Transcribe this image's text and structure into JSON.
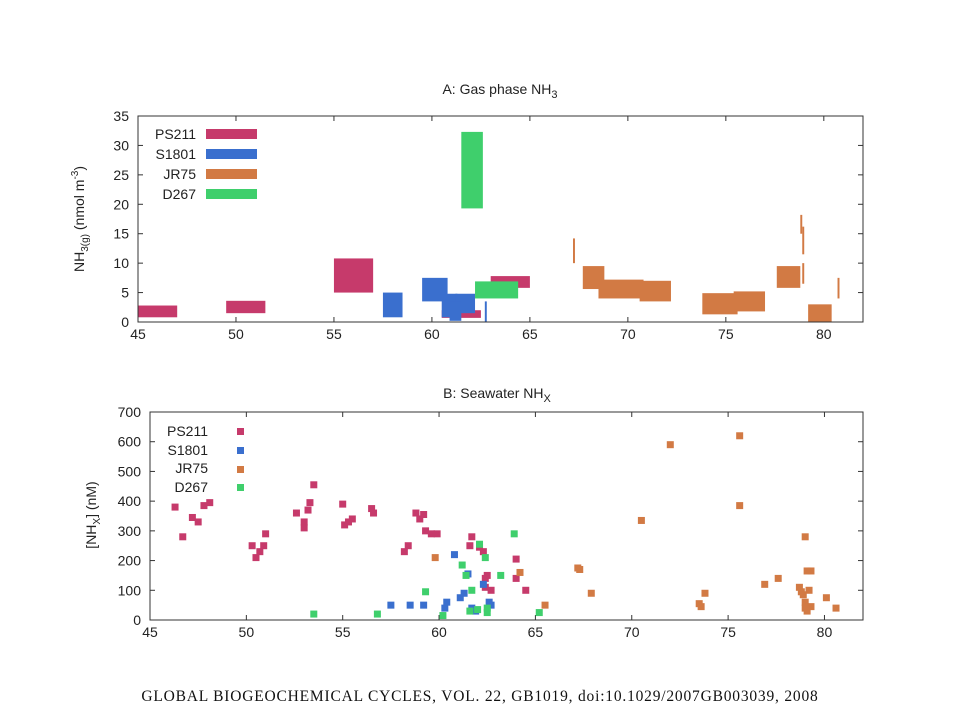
{
  "footer": "GLOBAL BIOGEOCHEMICAL CYCLES, VOL. 22, GB1019, doi:10.1029/2007GB003039, 2008",
  "colors": {
    "PS211": "#c63a6b",
    "S1801": "#3a6fce",
    "JR75": "#d27a44",
    "D267": "#3fcf6c"
  },
  "chart_data": [
    {
      "type": "bar",
      "title": {
        "main": "A: Gas phase NH",
        "sub": "3"
      },
      "ylabel": {
        "pre": "NH",
        "sub": "3(g)",
        "post": " (nmol m",
        "sup": "-3",
        "end": ")"
      },
      "xlim": [
        45,
        82
      ],
      "ylim": [
        0,
        35
      ],
      "xticks": [
        45,
        50,
        55,
        60,
        65,
        70,
        75,
        80
      ],
      "yticks": [
        0,
        5,
        10,
        15,
        20,
        25,
        30,
        35
      ],
      "legend_position": "top-left",
      "series": [
        {
          "name": "PS211",
          "bars": [
            [
              45,
              47,
              0.8,
              2.8
            ],
            [
              49.5,
              51.5,
              1.5,
              3.6
            ],
            [
              55,
              57,
              5.0,
              10.8
            ],
            [
              60.5,
              62.5,
              0.7,
              2.0
            ],
            [
              63,
              65,
              5.8,
              7.8
            ]
          ]
        },
        {
          "name": "S1801",
          "bars": [
            [
              57.5,
              58.5,
              0.8,
              5.0
            ],
            [
              59.5,
              60.8,
              3.5,
              7.5
            ],
            [
              60.5,
              61.3,
              0.8,
              4.8
            ],
            [
              61.2,
              62.2,
              1.5,
              4.8
            ],
            [
              60.9,
              61.5,
              0.2,
              3.5
            ],
            [
              62.7,
              62.8,
              0.0,
              3.5
            ]
          ]
        },
        {
          "name": "JR75",
          "bars": [
            [
              67.7,
              68.8,
              5.6,
              9.5
            ],
            [
              68.5,
              70.8,
              4.0,
              7.2
            ],
            [
              70.6,
              72.2,
              3.5,
              7.0
            ],
            [
              73.8,
              75.6,
              1.3,
              4.9
            ],
            [
              75.4,
              77.0,
              1.8,
              5.2
            ],
            [
              77.6,
              78.8,
              5.8,
              9.5
            ],
            [
              79.2,
              80.4,
              0.0,
              3.0
            ],
            [
              67.2,
              67.3,
              10.0,
              14.2
            ],
            [
              78.8,
              78.9,
              15.0,
              18.2
            ],
            [
              78.9,
              79.0,
              11.5,
              16.2
            ],
            [
              78.9,
              79.0,
              6.5,
              10.0
            ],
            [
              80.7,
              80.8,
              4.0,
              7.5
            ]
          ]
        },
        {
          "name": "D267",
          "bars": [
            [
              61.5,
              62.6,
              19.3,
              32.3
            ],
            [
              62.2,
              64.4,
              4.0,
              6.9
            ]
          ]
        }
      ]
    },
    {
      "type": "scatter",
      "title": {
        "main": "B: Seawater NH",
        "sub": "X"
      },
      "ylabel": {
        "pre": "[NH",
        "sub": "X",
        "post": "] (nM)"
      },
      "xlim": [
        45,
        82
      ],
      "ylim": [
        0,
        700
      ],
      "xticks": [
        45,
        50,
        55,
        60,
        65,
        70,
        75,
        80
      ],
      "yticks": [
        0,
        100,
        200,
        300,
        400,
        500,
        600,
        700
      ],
      "legend_position": "top-left",
      "series": [
        {
          "name": "PS211",
          "points": [
            [
              46.3,
              380
            ],
            [
              46.7,
              280
            ],
            [
              47.2,
              345
            ],
            [
              47.5,
              330
            ],
            [
              47.8,
              385
            ],
            [
              48.1,
              395
            ],
            [
              50.3,
              250
            ],
            [
              50.5,
              210
            ],
            [
              50.7,
              230
            ],
            [
              50.9,
              250
            ],
            [
              51.0,
              290
            ],
            [
              52.6,
              360
            ],
            [
              53.0,
              330
            ],
            [
              53.0,
              310
            ],
            [
              53.2,
              370
            ],
            [
              53.3,
              395
            ],
            [
              53.5,
              455
            ],
            [
              55.0,
              390
            ],
            [
              55.1,
              320
            ],
            [
              55.3,
              330
            ],
            [
              55.5,
              340
            ],
            [
              56.5,
              375
            ],
            [
              56.6,
              360
            ],
            [
              58.2,
              230
            ],
            [
              58.4,
              250
            ],
            [
              58.8,
              360
            ],
            [
              59.0,
              340
            ],
            [
              59.2,
              355
            ],
            [
              59.3,
              300
            ],
            [
              59.6,
              290
            ],
            [
              59.9,
              290
            ],
            [
              61.6,
              250
            ],
            [
              61.7,
              280
            ],
            [
              62.1,
              245
            ],
            [
              62.3,
              230
            ],
            [
              62.4,
              140
            ],
            [
              62.4,
              110
            ],
            [
              62.5,
              150
            ],
            [
              62.7,
              100
            ],
            [
              64.0,
              205
            ],
            [
              64.0,
              140
            ],
            [
              64.5,
              100
            ]
          ]
        },
        {
          "name": "S1801",
          "points": [
            [
              57.5,
              50
            ],
            [
              58.5,
              50
            ],
            [
              59.2,
              50
            ],
            [
              60.3,
              40
            ],
            [
              60.4,
              60
            ],
            [
              60.8,
              220
            ],
            [
              61.1,
              75
            ],
            [
              61.3,
              90
            ],
            [
              61.5,
              155
            ],
            [
              61.7,
              40
            ],
            [
              61.9,
              30
            ],
            [
              62.3,
              120
            ],
            [
              62.6,
              60
            ],
            [
              62.7,
              50
            ]
          ]
        },
        {
          "name": "JR75",
          "points": [
            [
              59.8,
              210
            ],
            [
              64.2,
              160
            ],
            [
              65.5,
              50
            ],
            [
              67.2,
              175
            ],
            [
              67.3,
              170
            ],
            [
              67.9,
              90
            ],
            [
              70.5,
              335
            ],
            [
              72.0,
              590
            ],
            [
              73.5,
              55
            ],
            [
              73.6,
              45
            ],
            [
              73.8,
              90
            ],
            [
              75.6,
              620
            ],
            [
              75.6,
              385
            ],
            [
              76.9,
              120
            ],
            [
              77.6,
              140
            ],
            [
              78.7,
              110
            ],
            [
              78.8,
              95
            ],
            [
              78.9,
              85
            ],
            [
              79.0,
              60
            ],
            [
              79.0,
              280
            ],
            [
              79.0,
              40
            ],
            [
              79.1,
              30
            ],
            [
              79.1,
              165
            ],
            [
              79.2,
              100
            ],
            [
              79.3,
              165
            ],
            [
              79.3,
              45
            ],
            [
              80.1,
              75
            ],
            [
              80.6,
              40
            ]
          ]
        },
        {
          "name": "D267",
          "points": [
            [
              53.5,
              20
            ],
            [
              56.8,
              20
            ],
            [
              59.3,
              95
            ],
            [
              60.2,
              15
            ],
            [
              61.2,
              185
            ],
            [
              61.4,
              150
            ],
            [
              61.7,
              100
            ],
            [
              62.0,
              35
            ],
            [
              62.1,
              255
            ],
            [
              62.4,
              210
            ],
            [
              62.5,
              25
            ],
            [
              62.5,
              40
            ],
            [
              63.2,
              150
            ],
            [
              63.9,
              290
            ],
            [
              65.2,
              25
            ],
            [
              61.6,
              30
            ]
          ]
        }
      ]
    }
  ]
}
